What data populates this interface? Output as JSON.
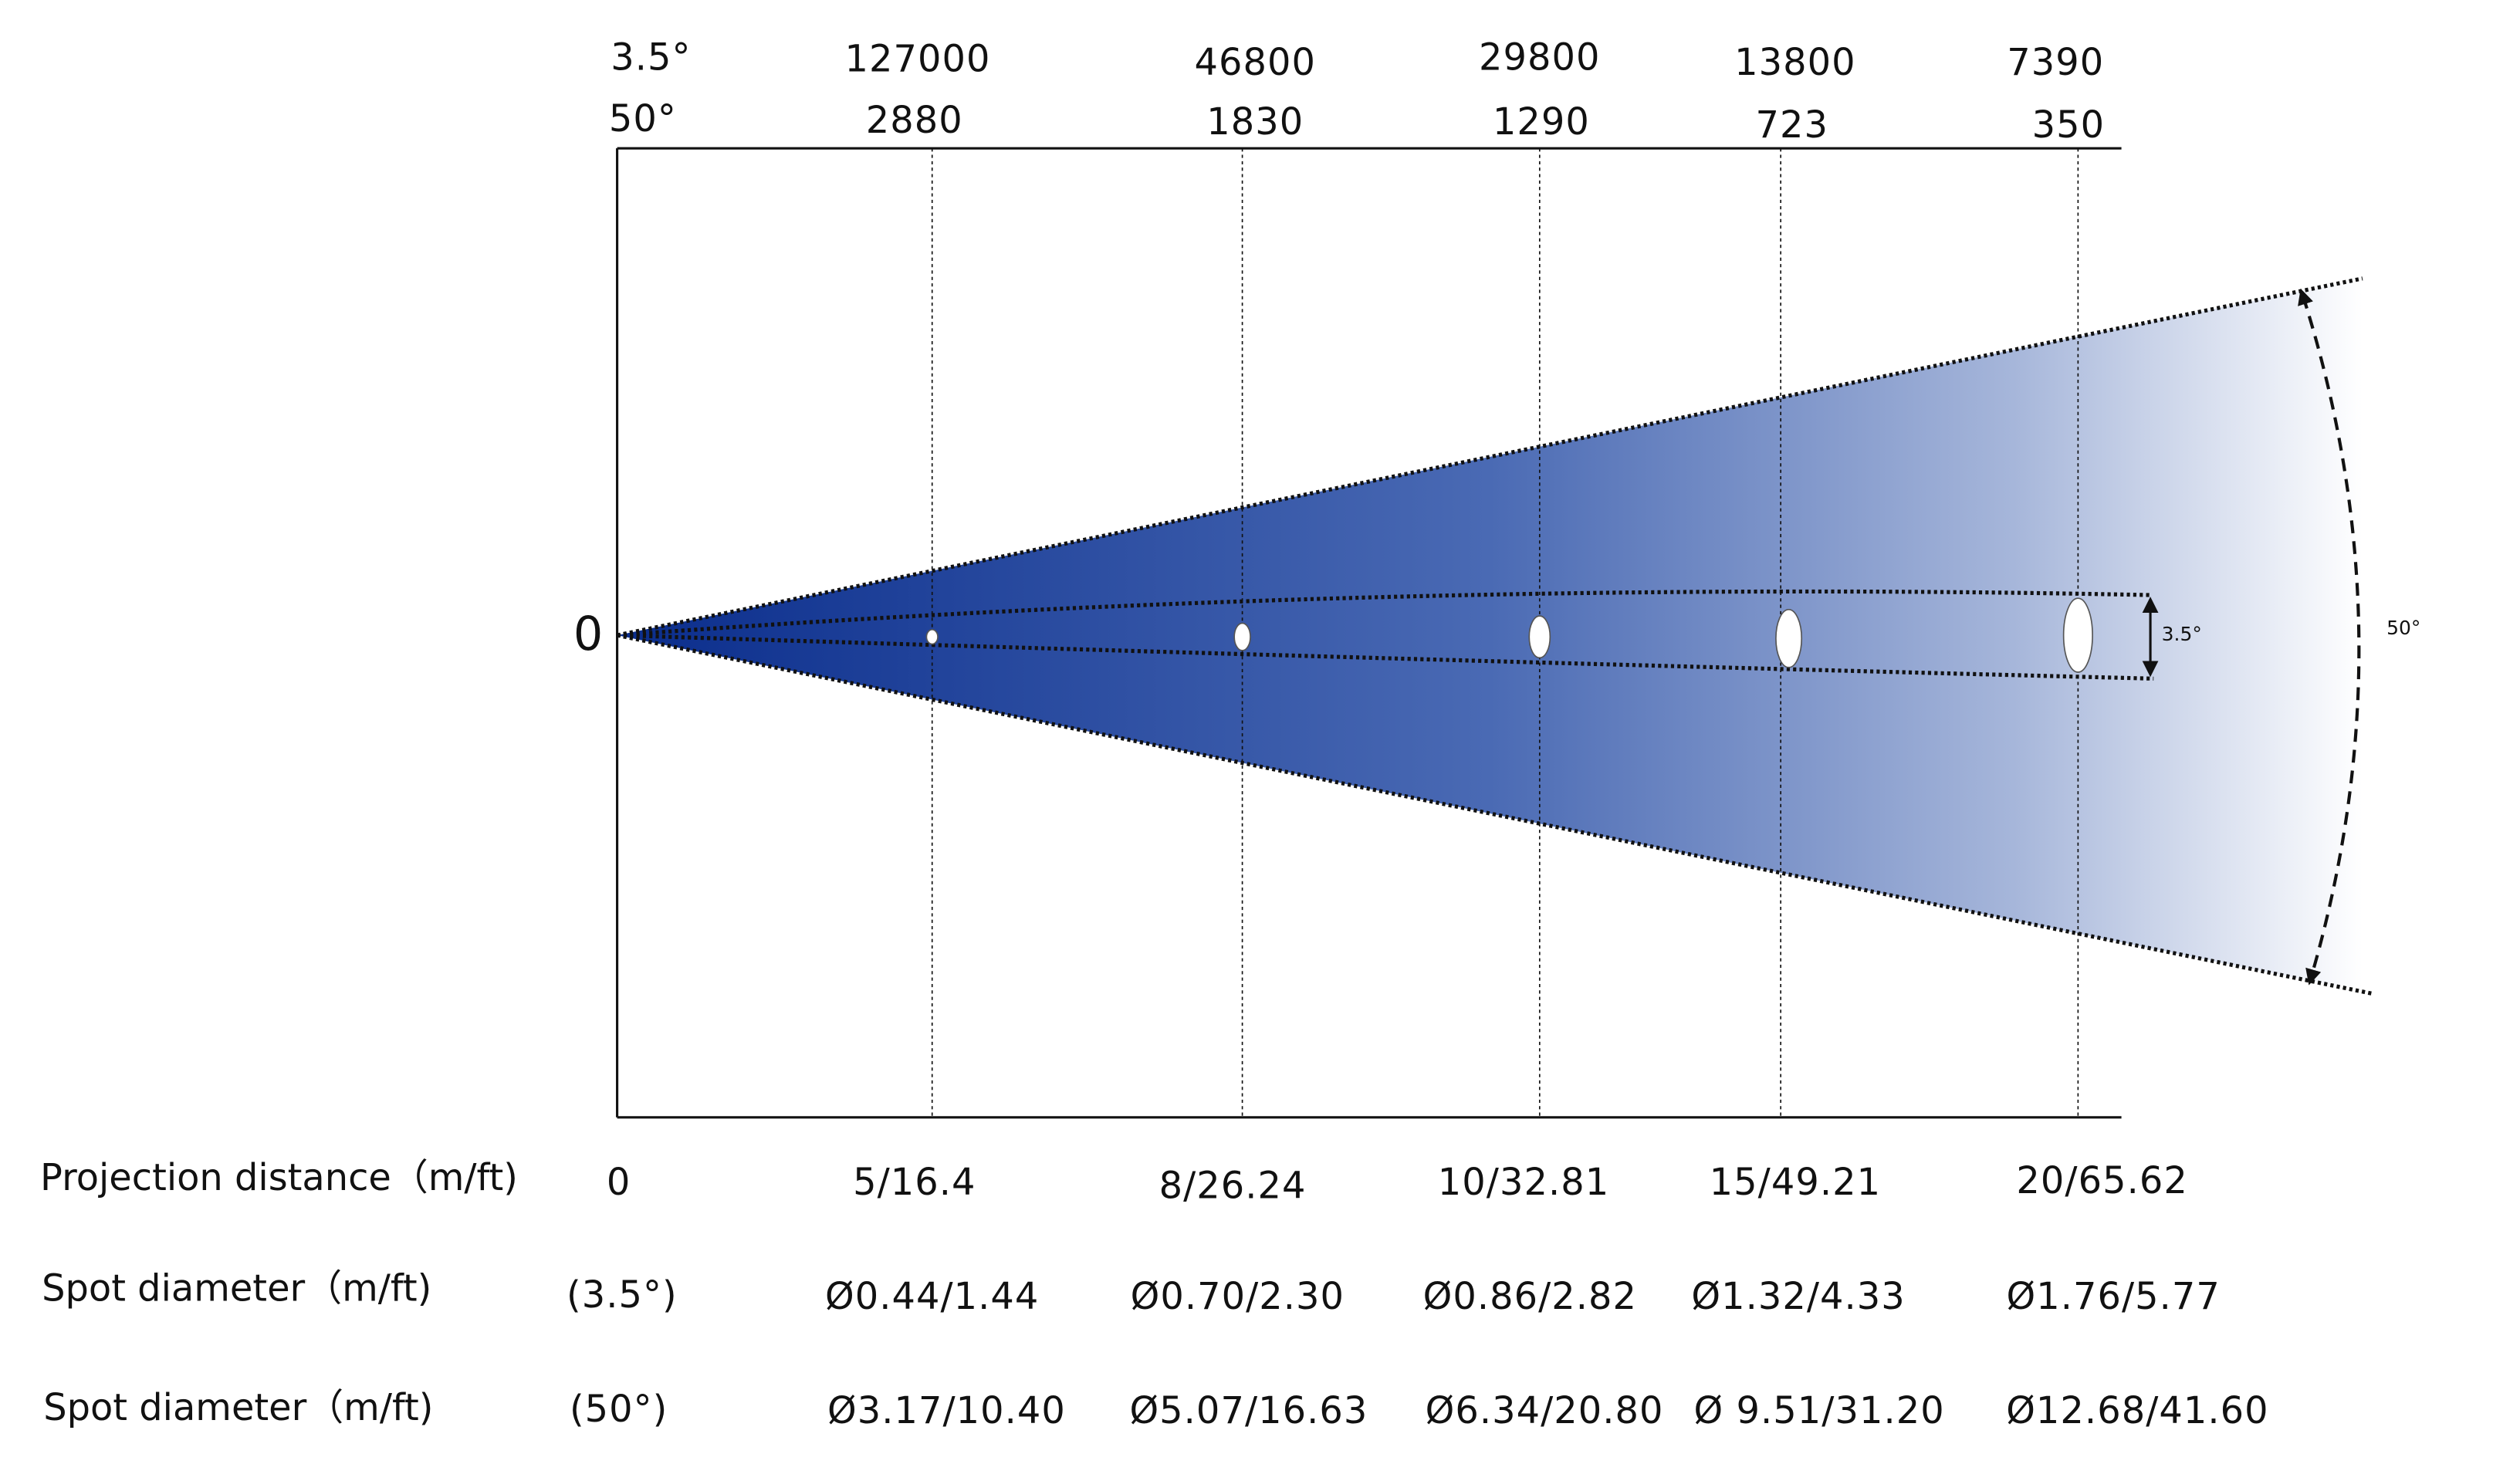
{
  "header": {
    "narrow_angle": "3.5°",
    "wide_angle": "50°"
  },
  "origin_label": "0",
  "columns": [
    {
      "lux_narrow": 127000,
      "lux_wide": 2880,
      "distance": "5/16.4",
      "spot_narrow": "Ø0.44/1.44",
      "spot_wide": "Ø3.17/10.40"
    },
    {
      "lux_narrow": 46800,
      "lux_wide": 1830,
      "distance": "8/26.24",
      "spot_narrow": "Ø0.70/2.30",
      "spot_wide": "Ø5.07/16.63"
    },
    {
      "lux_narrow": 29800,
      "lux_wide": 1290,
      "distance": "10/32.81",
      "spot_narrow": "Ø0.86/2.82",
      "spot_wide": "Ø6.34/20.80"
    },
    {
      "lux_narrow": 13800,
      "lux_wide": 723,
      "distance": "15/49.21",
      "spot_narrow": "Ø1.32/4.33",
      "spot_wide": "Ø 9.51/31.20"
    },
    {
      "lux_narrow": 7390,
      "lux_wide": 350,
      "distance": "20/65.62",
      "spot_narrow": "Ø1.76/5.77",
      "spot_wide": "Ø12.68/41.60"
    }
  ],
  "rows": {
    "distance_label": "Projection distance（m/ft)",
    "distance_origin": "0",
    "spot_narrow_label": "Spot diameter（m/ft)",
    "spot_narrow_angle": "(3.5°)",
    "spot_wide_label": "Spot diameter（m/ft)",
    "spot_wide_angle": "(50°)"
  },
  "annotations": {
    "narrow_angle": "3.5°",
    "wide_angle": "50°"
  }
}
